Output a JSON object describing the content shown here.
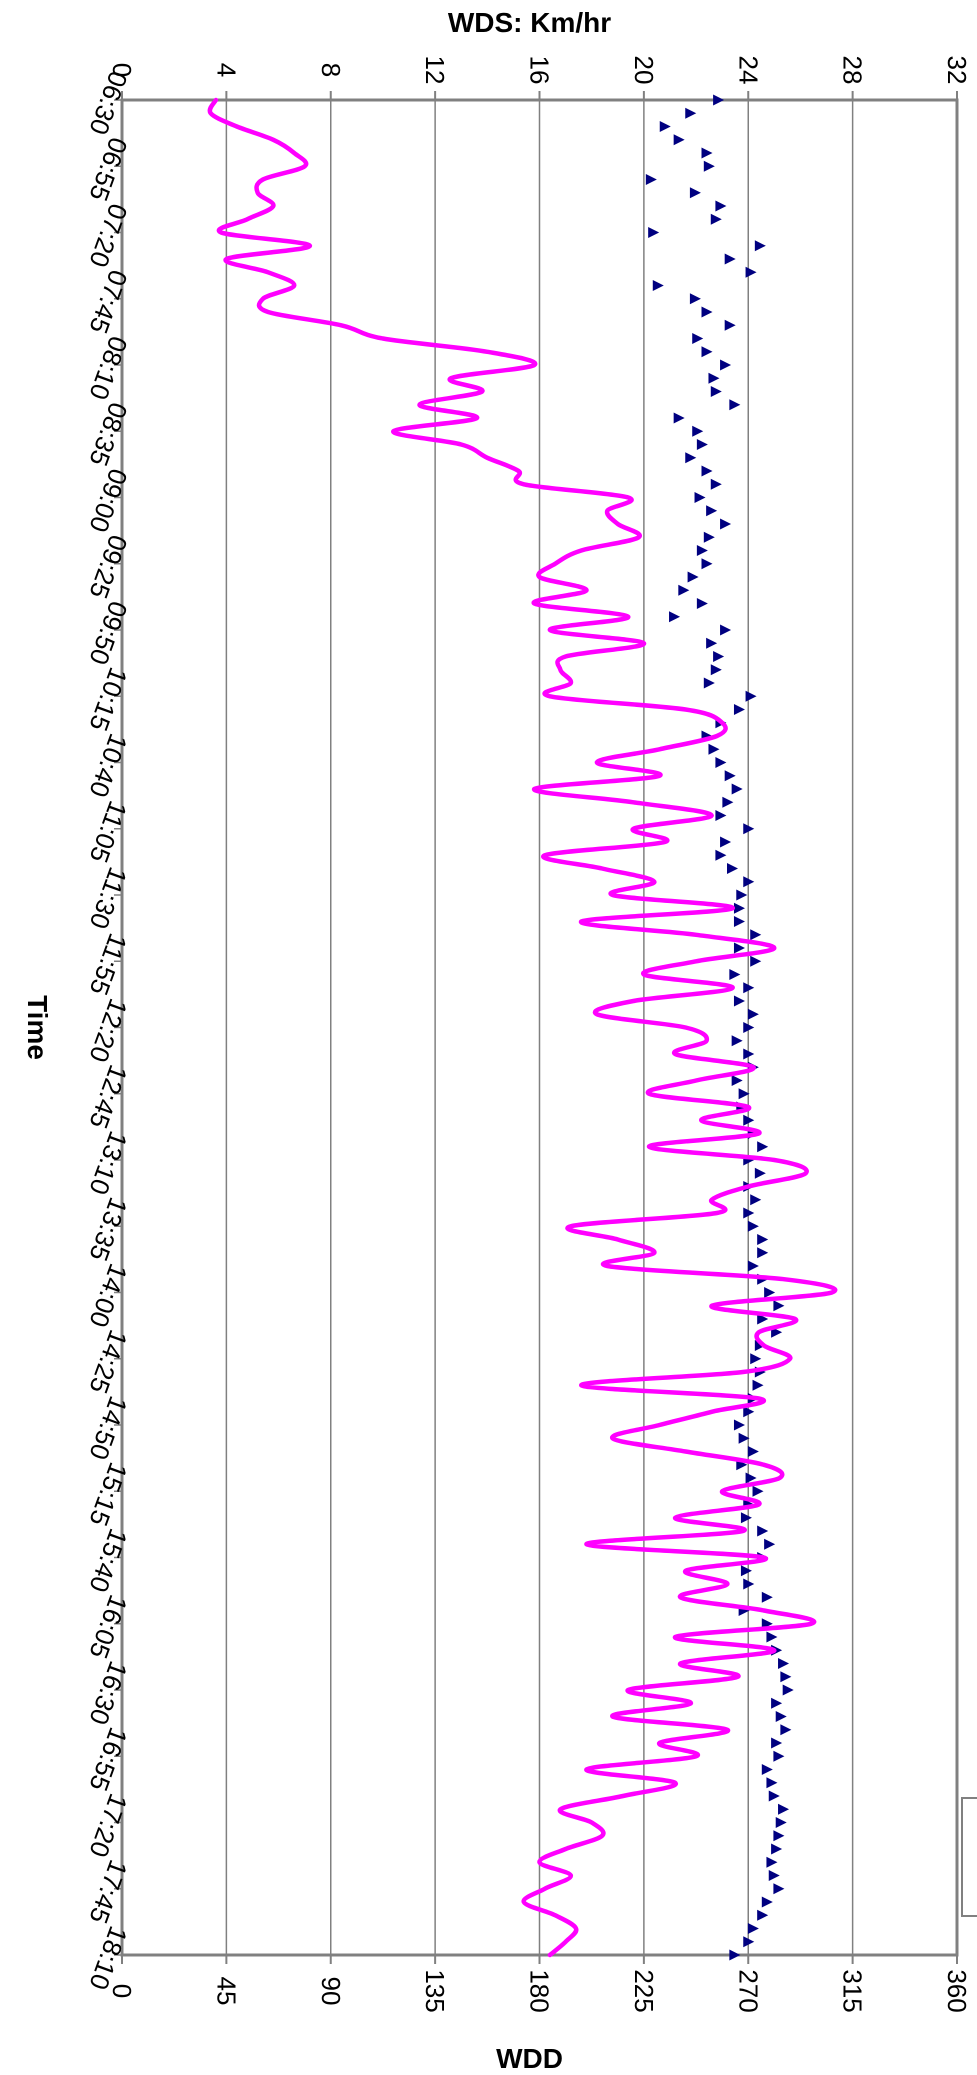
{
  "chart_data": {
    "type": "line",
    "orientation": "rotated-90-clockwise",
    "x_axis": {
      "label": "Time",
      "ticks": [
        "06:30",
        "06:55",
        "07:20",
        "07:45",
        "08:10",
        "08:35",
        "09:00",
        "09:25",
        "09:50",
        "10:15",
        "10:40",
        "11:05",
        "11:30",
        "11:55",
        "12:20",
        "12:45",
        "13:10",
        "13:35",
        "14:00",
        "14:25",
        "14:50",
        "15:15",
        "15:40",
        "16:05",
        "16:30",
        "16:55",
        "17:20",
        "17:45",
        "18:10"
      ],
      "range": [
        "06:30",
        "18:10"
      ]
    },
    "y_axis_primary": {
      "label": "WDS: Km/hr",
      "ticks": [
        "0",
        "4",
        "8",
        "12",
        "16",
        "20",
        "24",
        "28",
        "32"
      ],
      "range": [
        0,
        32
      ]
    },
    "y_axis_secondary": {
      "label": "WDD",
      "ticks": [
        "0",
        "45",
        "90",
        "135",
        "180",
        "225",
        "270",
        "315",
        "360"
      ],
      "range": [
        0,
        360
      ]
    },
    "grid": "horizontal major gridlines on primary axis",
    "series": [
      {
        "name": "",
        "axis": "WDS: Km/hr",
        "style": "line",
        "color": "#FF00FF",
        "points": [
          [
            "06:30",
            3.6
          ],
          [
            "06:35",
            3.4
          ],
          [
            "06:40",
            4.4
          ],
          [
            "06:45",
            5.8
          ],
          [
            "06:50",
            6.6
          ],
          [
            "06:55",
            7.0
          ],
          [
            "07:00",
            5.4
          ],
          [
            "07:05",
            5.2
          ],
          [
            "07:10",
            5.8
          ],
          [
            "07:15",
            4.8
          ],
          [
            "07:20",
            3.8
          ],
          [
            "07:25",
            7.2
          ],
          [
            "07:30",
            4.0
          ],
          [
            "07:35",
            5.6
          ],
          [
            "07:40",
            6.6
          ],
          [
            "07:45",
            5.4
          ],
          [
            "07:50",
            5.6
          ],
          [
            "07:55",
            8.4
          ],
          [
            "08:00",
            10.0
          ],
          [
            "08:05",
            14.0
          ],
          [
            "08:10",
            15.8
          ],
          [
            "08:15",
            12.6
          ],
          [
            "08:20",
            13.8
          ],
          [
            "08:25",
            11.4
          ],
          [
            "08:30",
            13.6
          ],
          [
            "08:35",
            10.4
          ],
          [
            "08:40",
            13.0
          ],
          [
            "08:45",
            14.0
          ],
          [
            "08:50",
            15.2
          ],
          [
            "08:55",
            15.4
          ],
          [
            "09:00",
            19.4
          ],
          [
            "09:05",
            18.6
          ],
          [
            "09:10",
            19.0
          ],
          [
            "09:15",
            19.8
          ],
          [
            "09:20",
            17.6
          ],
          [
            "09:25",
            16.6
          ],
          [
            "09:30",
            16.0
          ],
          [
            "09:35",
            17.8
          ],
          [
            "09:40",
            15.8
          ],
          [
            "09:45",
            19.4
          ],
          [
            "09:50",
            16.4
          ],
          [
            "09:55",
            20.0
          ],
          [
            "10:00",
            17.0
          ],
          [
            "10:05",
            16.8
          ],
          [
            "10:10",
            17.2
          ],
          [
            "10:15",
            16.4
          ],
          [
            "10:20",
            21.6
          ],
          [
            "10:25",
            23.0
          ],
          [
            "10:30",
            22.8
          ],
          [
            "10:35",
            20.6
          ],
          [
            "10:40",
            18.2
          ],
          [
            "10:45",
            20.6
          ],
          [
            "10:50",
            15.8
          ],
          [
            "10:55",
            19.6
          ],
          [
            "11:00",
            22.6
          ],
          [
            "11:05",
            19.6
          ],
          [
            "11:10",
            20.8
          ],
          [
            "11:15",
            16.2
          ],
          [
            "11:20",
            18.4
          ],
          [
            "11:25",
            20.4
          ],
          [
            "11:30",
            18.8
          ],
          [
            "11:35",
            23.4
          ],
          [
            "11:40",
            17.6
          ],
          [
            "11:45",
            22.0
          ],
          [
            "11:50",
            25.0
          ],
          [
            "11:55",
            22.0
          ],
          [
            "12:00",
            20.0
          ],
          [
            "12:05",
            23.4
          ],
          [
            "12:10",
            19.6
          ],
          [
            "12:15",
            18.2
          ],
          [
            "12:20",
            21.6
          ],
          [
            "12:25",
            22.4
          ],
          [
            "12:30",
            21.2
          ],
          [
            "12:35",
            24.2
          ],
          [
            "12:40",
            22.0
          ],
          [
            "12:45",
            20.2
          ],
          [
            "12:50",
            24.0
          ],
          [
            "12:55",
            22.2
          ],
          [
            "13:00",
            24.4
          ],
          [
            "13:05",
            20.2
          ],
          [
            "13:10",
            25.0
          ],
          [
            "13:15",
            26.2
          ],
          [
            "13:20",
            24.0
          ],
          [
            "13:25",
            22.6
          ],
          [
            "13:30",
            22.8
          ],
          [
            "13:35",
            17.2
          ],
          [
            "13:40",
            19.0
          ],
          [
            "13:45",
            20.4
          ],
          [
            "13:50",
            18.6
          ],
          [
            "13:55",
            25.4
          ],
          [
            "14:00",
            27.2
          ],
          [
            "14:05",
            22.6
          ],
          [
            "14:10",
            25.8
          ],
          [
            "14:15",
            24.4
          ],
          [
            "14:20",
            24.6
          ],
          [
            "14:25",
            25.6
          ],
          [
            "14:30",
            23.8
          ],
          [
            "14:35",
            17.6
          ],
          [
            "14:40",
            24.4
          ],
          [
            "14:45",
            22.6
          ],
          [
            "14:50",
            20.6
          ],
          [
            "14:55",
            18.8
          ],
          [
            "15:00",
            21.6
          ],
          [
            "15:05",
            24.6
          ],
          [
            "15:10",
            25.2
          ],
          [
            "15:15",
            23.0
          ],
          [
            "15:20",
            24.4
          ],
          [
            "15:25",
            21.2
          ],
          [
            "15:30",
            23.8
          ],
          [
            "15:35",
            17.8
          ],
          [
            "15:40",
            24.6
          ],
          [
            "15:45",
            21.6
          ],
          [
            "15:50",
            23.2
          ],
          [
            "15:55",
            21.4
          ],
          [
            "16:00",
            24.6
          ],
          [
            "16:05",
            26.4
          ],
          [
            "16:10",
            21.2
          ],
          [
            "16:15",
            25.0
          ],
          [
            "16:20",
            21.4
          ],
          [
            "16:25",
            23.6
          ],
          [
            "16:30",
            19.4
          ],
          [
            "16:35",
            21.8
          ],
          [
            "16:40",
            18.8
          ],
          [
            "16:45",
            23.2
          ],
          [
            "16:50",
            20.6
          ],
          [
            "16:55",
            22.0
          ],
          [
            "17:00",
            17.8
          ],
          [
            "17:05",
            21.2
          ],
          [
            "17:10",
            19.2
          ],
          [
            "17:15",
            16.8
          ],
          [
            "17:20",
            18.0
          ],
          [
            "17:25",
            18.4
          ],
          [
            "17:30",
            17.0
          ],
          [
            "17:35",
            16.0
          ],
          [
            "17:40",
            17.2
          ],
          [
            "17:45",
            16.2
          ],
          [
            "17:50",
            15.4
          ],
          [
            "17:55",
            16.6
          ],
          [
            "18:00",
            17.4
          ],
          [
            "18:05",
            17.0
          ],
          [
            "18:10",
            16.4
          ]
        ]
      },
      {
        "name": "",
        "axis": "WDD",
        "style": "triangle markers",
        "color": "#000080",
        "points": [
          [
            "06:30",
            257
          ],
          [
            "06:35",
            245
          ],
          [
            "06:40",
            234
          ],
          [
            "06:45",
            240
          ],
          [
            "06:50",
            252
          ],
          [
            "06:55",
            253
          ],
          [
            "07:00",
            228
          ],
          [
            "07:05",
            247
          ],
          [
            "07:10",
            258
          ],
          [
            "07:15",
            256
          ],
          [
            "07:20",
            229
          ],
          [
            "07:25",
            275
          ],
          [
            "07:30",
            262
          ],
          [
            "07:35",
            271
          ],
          [
            "07:40",
            231
          ],
          [
            "07:45",
            247
          ],
          [
            "07:50",
            252
          ],
          [
            "07:55",
            262
          ],
          [
            "08:00",
            248
          ],
          [
            "08:05",
            252
          ],
          [
            "08:10",
            260
          ],
          [
            "08:15",
            255
          ],
          [
            "08:20",
            256
          ],
          [
            "08:25",
            264
          ],
          [
            "08:30",
            240
          ],
          [
            "08:35",
            248
          ],
          [
            "08:40",
            250
          ],
          [
            "08:45",
            245
          ],
          [
            "08:50",
            252
          ],
          [
            "08:55",
            256
          ],
          [
            "09:00",
            249
          ],
          [
            "09:05",
            254
          ],
          [
            "09:10",
            260
          ],
          [
            "09:15",
            253
          ],
          [
            "09:20",
            250
          ],
          [
            "09:25",
            252
          ],
          [
            "09:30",
            246
          ],
          [
            "09:35",
            242
          ],
          [
            "09:40",
            250
          ],
          [
            "09:45",
            238
          ],
          [
            "09:50",
            260
          ],
          [
            "09:55",
            254
          ],
          [
            "10:00",
            257
          ],
          [
            "10:05",
            256
          ],
          [
            "10:10",
            253
          ],
          [
            "10:15",
            271
          ],
          [
            "10:20",
            266
          ],
          [
            "10:25",
            258
          ],
          [
            "10:30",
            252
          ],
          [
            "10:35",
            255
          ],
          [
            "10:40",
            258
          ],
          [
            "10:45",
            262
          ],
          [
            "10:50",
            265
          ],
          [
            "10:55",
            261
          ],
          [
            "11:00",
            258
          ],
          [
            "11:05",
            270
          ],
          [
            "11:10",
            260
          ],
          [
            "11:15",
            258
          ],
          [
            "11:20",
            263
          ],
          [
            "11:25",
            270
          ],
          [
            "11:30",
            267
          ],
          [
            "11:35",
            266
          ],
          [
            "11:40",
            266
          ],
          [
            "11:45",
            273
          ],
          [
            "11:50",
            266
          ],
          [
            "11:55",
            273
          ],
          [
            "12:00",
            264
          ],
          [
            "12:05",
            270
          ],
          [
            "12:10",
            266
          ],
          [
            "12:15",
            272
          ],
          [
            "12:20",
            270
          ],
          [
            "12:25",
            265
          ],
          [
            "12:30",
            270
          ],
          [
            "12:35",
            272
          ],
          [
            "12:40",
            265
          ],
          [
            "12:45",
            268
          ],
          [
            "12:50",
            267
          ],
          [
            "12:55",
            270
          ],
          [
            "13:00",
            272
          ],
          [
            "13:05",
            276
          ],
          [
            "13:10",
            270
          ],
          [
            "13:15",
            275
          ],
          [
            "13:20",
            270
          ],
          [
            "13:25",
            273
          ],
          [
            "13:30",
            270
          ],
          [
            "13:35",
            272
          ],
          [
            "13:40",
            276
          ],
          [
            "13:45",
            276
          ],
          [
            "13:50",
            272
          ],
          [
            "13:55",
            276
          ],
          [
            "14:00",
            279
          ],
          [
            "14:05",
            283
          ],
          [
            "14:10",
            276
          ],
          [
            "14:15",
            282
          ],
          [
            "14:20",
            275
          ],
          [
            "14:25",
            273
          ],
          [
            "14:30",
            275
          ],
          [
            "14:35",
            274
          ],
          [
            "14:40",
            272
          ],
          [
            "14:45",
            270
          ],
          [
            "14:50",
            266
          ],
          [
            "14:55",
            268
          ],
          [
            "15:00",
            272
          ],
          [
            "15:05",
            267
          ],
          [
            "15:10",
            271
          ],
          [
            "15:15",
            274
          ],
          [
            "15:20",
            270
          ],
          [
            "15:25",
            269
          ],
          [
            "15:30",
            276
          ],
          [
            "15:35",
            279
          ],
          [
            "15:40",
            276
          ],
          [
            "15:45",
            269
          ],
          [
            "15:50",
            270
          ],
          [
            "15:55",
            278
          ],
          [
            "16:00",
            268
          ],
          [
            "16:05",
            278
          ],
          [
            "16:10",
            280
          ],
          [
            "16:15",
            282
          ],
          [
            "16:20",
            285
          ],
          [
            "16:25",
            286
          ],
          [
            "16:30",
            287
          ],
          [
            "16:35",
            282
          ],
          [
            "16:40",
            284
          ],
          [
            "16:45",
            286
          ],
          [
            "16:50",
            282
          ],
          [
            "16:55",
            283
          ],
          [
            "17:00",
            278
          ],
          [
            "17:05",
            280
          ],
          [
            "17:10",
            281
          ],
          [
            "17:15",
            285
          ],
          [
            "17:20",
            284
          ],
          [
            "17:25",
            283
          ],
          [
            "17:30",
            282
          ],
          [
            "17:35",
            280
          ],
          [
            "17:40",
            281
          ],
          [
            "17:45",
            283
          ],
          [
            "17:50",
            278
          ],
          [
            "17:55",
            276
          ],
          [
            "18:00",
            272
          ],
          [
            "18:05",
            270
          ],
          [
            "18:10",
            264
          ]
        ]
      }
    ]
  }
}
